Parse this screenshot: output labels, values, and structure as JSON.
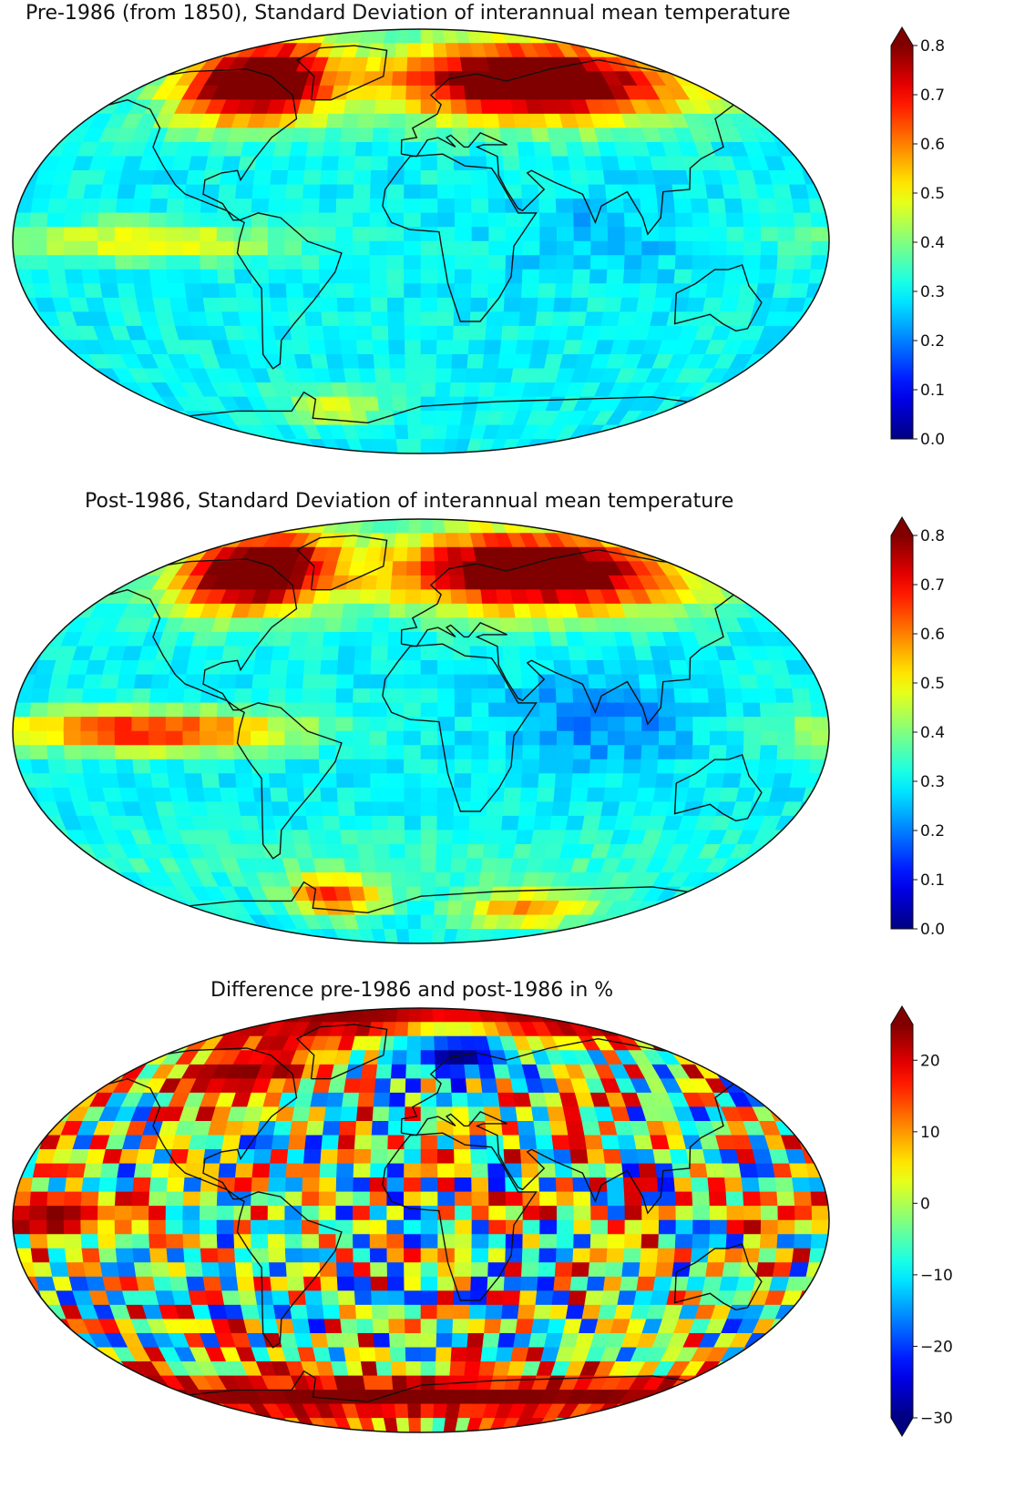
{
  "colors": {
    "colormap": "jet",
    "colormap_stops": [
      "#00007f",
      "#0000ff",
      "#007fff",
      "#00ffff",
      "#7fff7f",
      "#ffff00",
      "#ff7f00",
      "#ff0000",
      "#7f0000"
    ],
    "coastline": "#111111",
    "frame": "#111111"
  },
  "panels": [
    {
      "title": "Pre-1986 (from 1850), Standard Deviation of interannual mean temperature",
      "colorbar": {
        "min": 0.0,
        "max": 0.8,
        "extend": "max",
        "ticks": [
          0.0,
          0.1,
          0.2,
          0.3,
          0.4,
          0.5,
          0.6,
          0.7,
          0.8
        ],
        "tick_labels": [
          "0.0",
          "0.1",
          "0.2",
          "0.3",
          "0.4",
          "0.5",
          "0.6",
          "0.7",
          "0.8"
        ]
      },
      "field_description_values": {
        "north_america_arctic": 0.8,
        "siberia_europe": 0.8,
        "tropical_pacific": 0.5,
        "oceans_typical": 0.3,
        "indian_ocean": 0.25,
        "southern_ocean": 0.3,
        "antarctica_peninsula": 0.5
      }
    },
    {
      "title": "Post-1986, Standard Deviation of interannual mean temperature",
      "colorbar": {
        "min": 0.0,
        "max": 0.8,
        "extend": "max",
        "ticks": [
          0.0,
          0.1,
          0.2,
          0.3,
          0.4,
          0.5,
          0.6,
          0.7,
          0.8
        ],
        "tick_labels": [
          "0.0",
          "0.1",
          "0.2",
          "0.3",
          "0.4",
          "0.5",
          "0.6",
          "0.7",
          "0.8"
        ]
      },
      "field_description_values": {
        "north_america_arctic": 0.8,
        "siberia_europe": 0.8,
        "tropical_pacific": 0.7,
        "oceans_typical": 0.3,
        "indian_ocean": 0.2,
        "southern_ocean": 0.35,
        "antarctica_peninsula": 0.7
      }
    },
    {
      "title": "Difference pre-1986 and post-1986 in %",
      "colorbar": {
        "min": -30,
        "max": 25,
        "extend": "both",
        "ticks": [
          -30,
          -20,
          -10,
          0,
          10,
          20
        ],
        "tick_labels": [
          "−30",
          "−20",
          "−10",
          "0",
          "10",
          "20"
        ]
      },
      "field_description_values": {
        "arctic": 25,
        "europe": -30,
        "tropical_pacific": 25,
        "southern_ocean": 25,
        "mixed_oceans": 0
      }
    }
  ]
}
